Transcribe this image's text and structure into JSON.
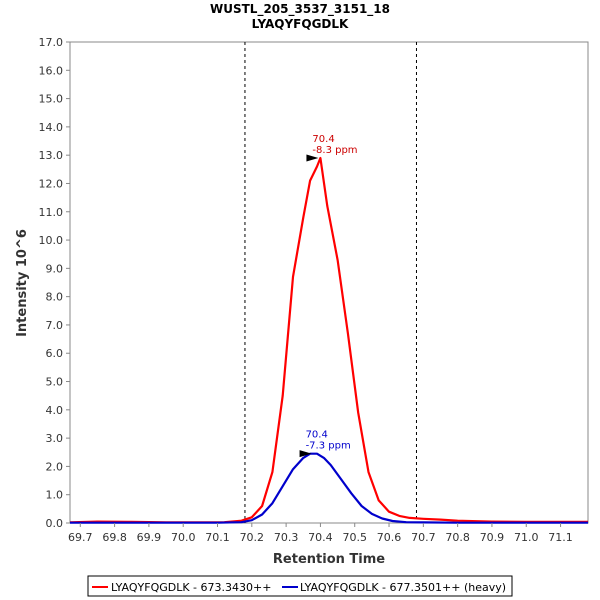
{
  "chart_data": {
    "type": "line",
    "title": "WUSTL_205_3537_3151_18",
    "subtitle": "LYAQYFQGDLK",
    "xlabel": "Retention Time",
    "ylabel": "Intensity 10^6",
    "xlim": [
      69.67,
      71.18
    ],
    "ylim": [
      0,
      17.0
    ],
    "xticks": [
      69.7,
      69.8,
      69.9,
      70.0,
      70.1,
      70.2,
      70.3,
      70.4,
      70.5,
      70.6,
      70.7,
      70.8,
      70.9,
      71.0,
      71.1
    ],
    "xtick_labels": [
      "69.7",
      "69.8",
      "69.9",
      "70.0",
      "70.1",
      "70.2",
      "70.3",
      "70.4",
      "70.5",
      "70.6",
      "70.7",
      "70.8",
      "70.9",
      "71.0",
      "71.1"
    ],
    "yticks": [
      0,
      1,
      2,
      3,
      4,
      5,
      6,
      7,
      8,
      9,
      10,
      11,
      12,
      13,
      14,
      15,
      16,
      17
    ],
    "ytick_labels": [
      "0.0",
      "1.0",
      "2.0",
      "3.0",
      "4.0",
      "5.0",
      "6.0",
      "7.0",
      "8.0",
      "9.0",
      "10.0",
      "11.0",
      "12.0",
      "13.0",
      "14.0",
      "15.0",
      "16.0",
      "17.0"
    ],
    "vlines": [
      70.18,
      70.68
    ],
    "series": [
      {
        "name": "LYAQYFQGDLK - 673.3430++",
        "color": "#ff0000",
        "x": [
          69.67,
          69.75,
          69.85,
          69.95,
          70.05,
          70.12,
          70.17,
          70.2,
          70.23,
          70.26,
          70.29,
          70.32,
          70.35,
          70.37,
          70.39,
          70.4,
          70.42,
          70.45,
          70.48,
          70.51,
          70.54,
          70.57,
          70.6,
          70.63,
          70.66,
          70.7,
          70.75,
          70.8,
          70.9,
          71.0,
          71.18
        ],
        "y": [
          0.02,
          0.05,
          0.04,
          0.02,
          0.02,
          0.03,
          0.08,
          0.2,
          0.6,
          1.8,
          4.5,
          8.7,
          10.8,
          12.1,
          12.6,
          12.9,
          11.2,
          9.3,
          6.7,
          3.9,
          1.8,
          0.8,
          0.4,
          0.25,
          0.18,
          0.15,
          0.12,
          0.08,
          0.05,
          0.04,
          0.04
        ]
      },
      {
        "name": "LYAQYFQGDLK - 677.3501++ (heavy)",
        "color": "#0000cc",
        "x": [
          69.67,
          69.9,
          70.1,
          70.17,
          70.2,
          70.23,
          70.26,
          70.29,
          70.32,
          70.35,
          70.37,
          70.39,
          70.41,
          70.43,
          70.46,
          70.49,
          70.52,
          70.55,
          70.58,
          70.61,
          70.65,
          70.7,
          70.8,
          71.0,
          71.18
        ],
        "y": [
          0.01,
          0.01,
          0.01,
          0.03,
          0.1,
          0.3,
          0.7,
          1.3,
          1.9,
          2.3,
          2.45,
          2.45,
          2.3,
          2.05,
          1.55,
          1.05,
          0.6,
          0.32,
          0.16,
          0.07,
          0.03,
          0.02,
          0.01,
          0.01,
          0.01
        ]
      }
    ],
    "annotations": [
      {
        "series": 0,
        "x": 70.4,
        "y": 12.9,
        "lines": [
          "70.4",
          "-8.3 ppm"
        ],
        "color": "#cc0000"
      },
      {
        "series": 1,
        "x": 70.38,
        "y": 2.45,
        "lines": [
          "70.4",
          "-7.3 ppm"
        ],
        "color": "#0000cc"
      }
    ],
    "legend": {
      "position": "bottom",
      "entries": [
        "LYAQYFQGDLK - 673.3430++",
        "LYAQYFQGDLK - 677.3501++ (heavy)"
      ]
    }
  }
}
